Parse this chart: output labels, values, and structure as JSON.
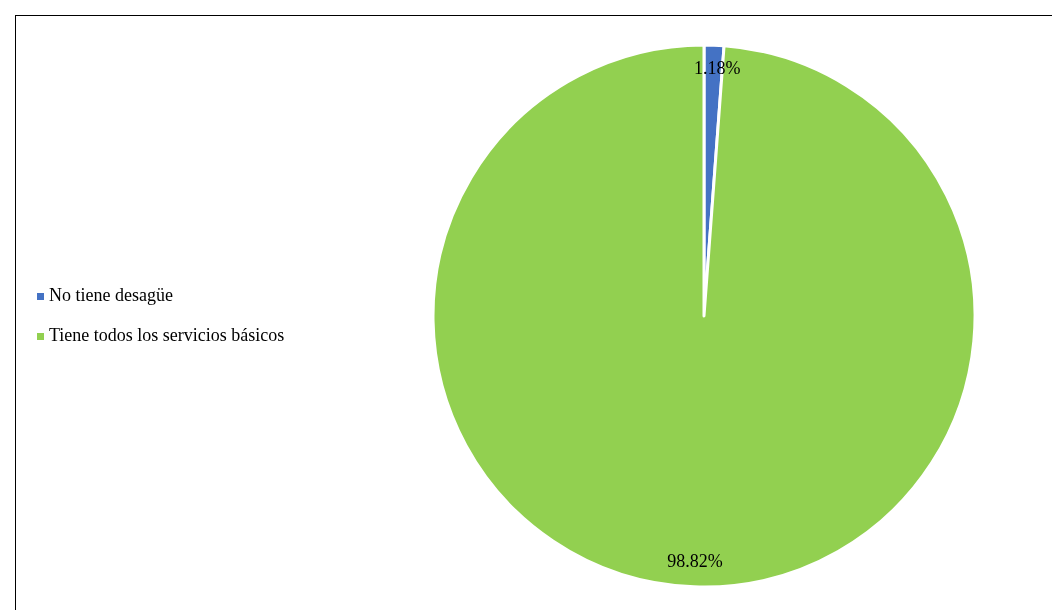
{
  "chart_data": {
    "type": "pie",
    "categories": [
      "No tiene desagüe",
      "Tiene todos los servicios básicos"
    ],
    "values": [
      1.18,
      98.82
    ],
    "colors": [
      "#4472c4",
      "#92d050"
    ],
    "value_labels": [
      "1.18%",
      "98.82%"
    ],
    "legend": "left"
  }
}
